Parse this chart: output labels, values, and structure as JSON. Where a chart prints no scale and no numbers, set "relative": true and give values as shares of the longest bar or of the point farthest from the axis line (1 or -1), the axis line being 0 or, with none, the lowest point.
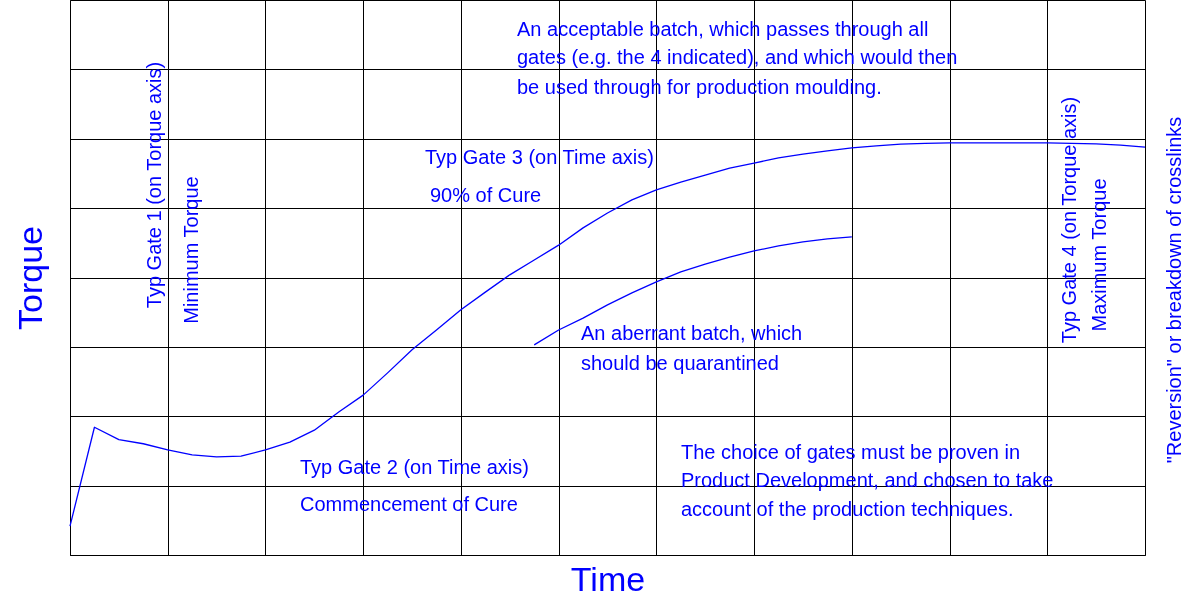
{
  "chart_data": {
    "type": "line",
    "relative": true,
    "xlabel": "Time",
    "ylabel": "Torque",
    "grid": true,
    "line_style": "solid",
    "marker": "none",
    "tick_labels": false,
    "categories": [
      null,
      null,
      null,
      null,
      null,
      null,
      null,
      null,
      null,
      null,
      null,
      null,
      null,
      null,
      null,
      null,
      null,
      null,
      null,
      null,
      null,
      null,
      null,
      null,
      null,
      null,
      null,
      null,
      null,
      null,
      null,
      null,
      null,
      null,
      null,
      null,
      null,
      null,
      null,
      null,
      null,
      null,
      null,
      null,
      null
    ],
    "series": [
      {
        "color": "#0000ff",
        "values": [
          0.07,
          0.31,
          0.28,
          0.27,
          0.255,
          0.243,
          0.238,
          0.24,
          0.255,
          0.274,
          0.303,
          0.347,
          0.388,
          0.442,
          0.498,
          0.546,
          0.595,
          0.638,
          0.68,
          0.716,
          0.752,
          0.794,
          0.83,
          0.862,
          0.886,
          0.905,
          0.922,
          0.939,
          0.951,
          0.964,
          0.973,
          0.981,
          0.988,
          0.993,
          0.997,
          0.999,
          1.0,
          1.0,
          1.0,
          1.0,
          1.0,
          0.999,
          0.998,
          0.995,
          0.99
        ]
      },
      {
        "color": "#0000ff",
        "values": [
          null,
          null,
          null,
          null,
          null,
          null,
          null,
          null,
          null,
          null,
          null,
          null,
          null,
          null,
          null,
          null,
          null,
          null,
          null,
          0.51,
          0.546,
          0.575,
          0.607,
          0.636,
          0.663,
          0.687,
          0.706,
          0.723,
          0.738,
          0.75,
          0.76,
          0.767,
          0.772,
          null,
          null,
          null,
          null,
          null,
          null,
          null,
          null,
          null,
          null,
          null,
          null
        ]
      }
    ],
    "annotations": [
      "Typ Gate 1 (on Torque axis)",
      "Minimum Torque",
      "Typ Gate 2 (on Time axis)",
      "Commencement of Cure",
      "Typ Gate 3 (on Time axis)",
      "90%  of Cure",
      "An acceptable batch, which passes through all",
      "gates (e.g. the 4 indicated), and which would then",
      "be used through for production moulding.",
      "An aberrant batch, which",
      "should be quarantined",
      "Typ Gate 4 (on Torque axis)",
      "Maximum Torque",
      "\"Reversion\" or breakdown of crosslinks",
      "The choice of gates must be proven in",
      "Product Development, and chosen to take",
      "account of the production techniques."
    ]
  }
}
